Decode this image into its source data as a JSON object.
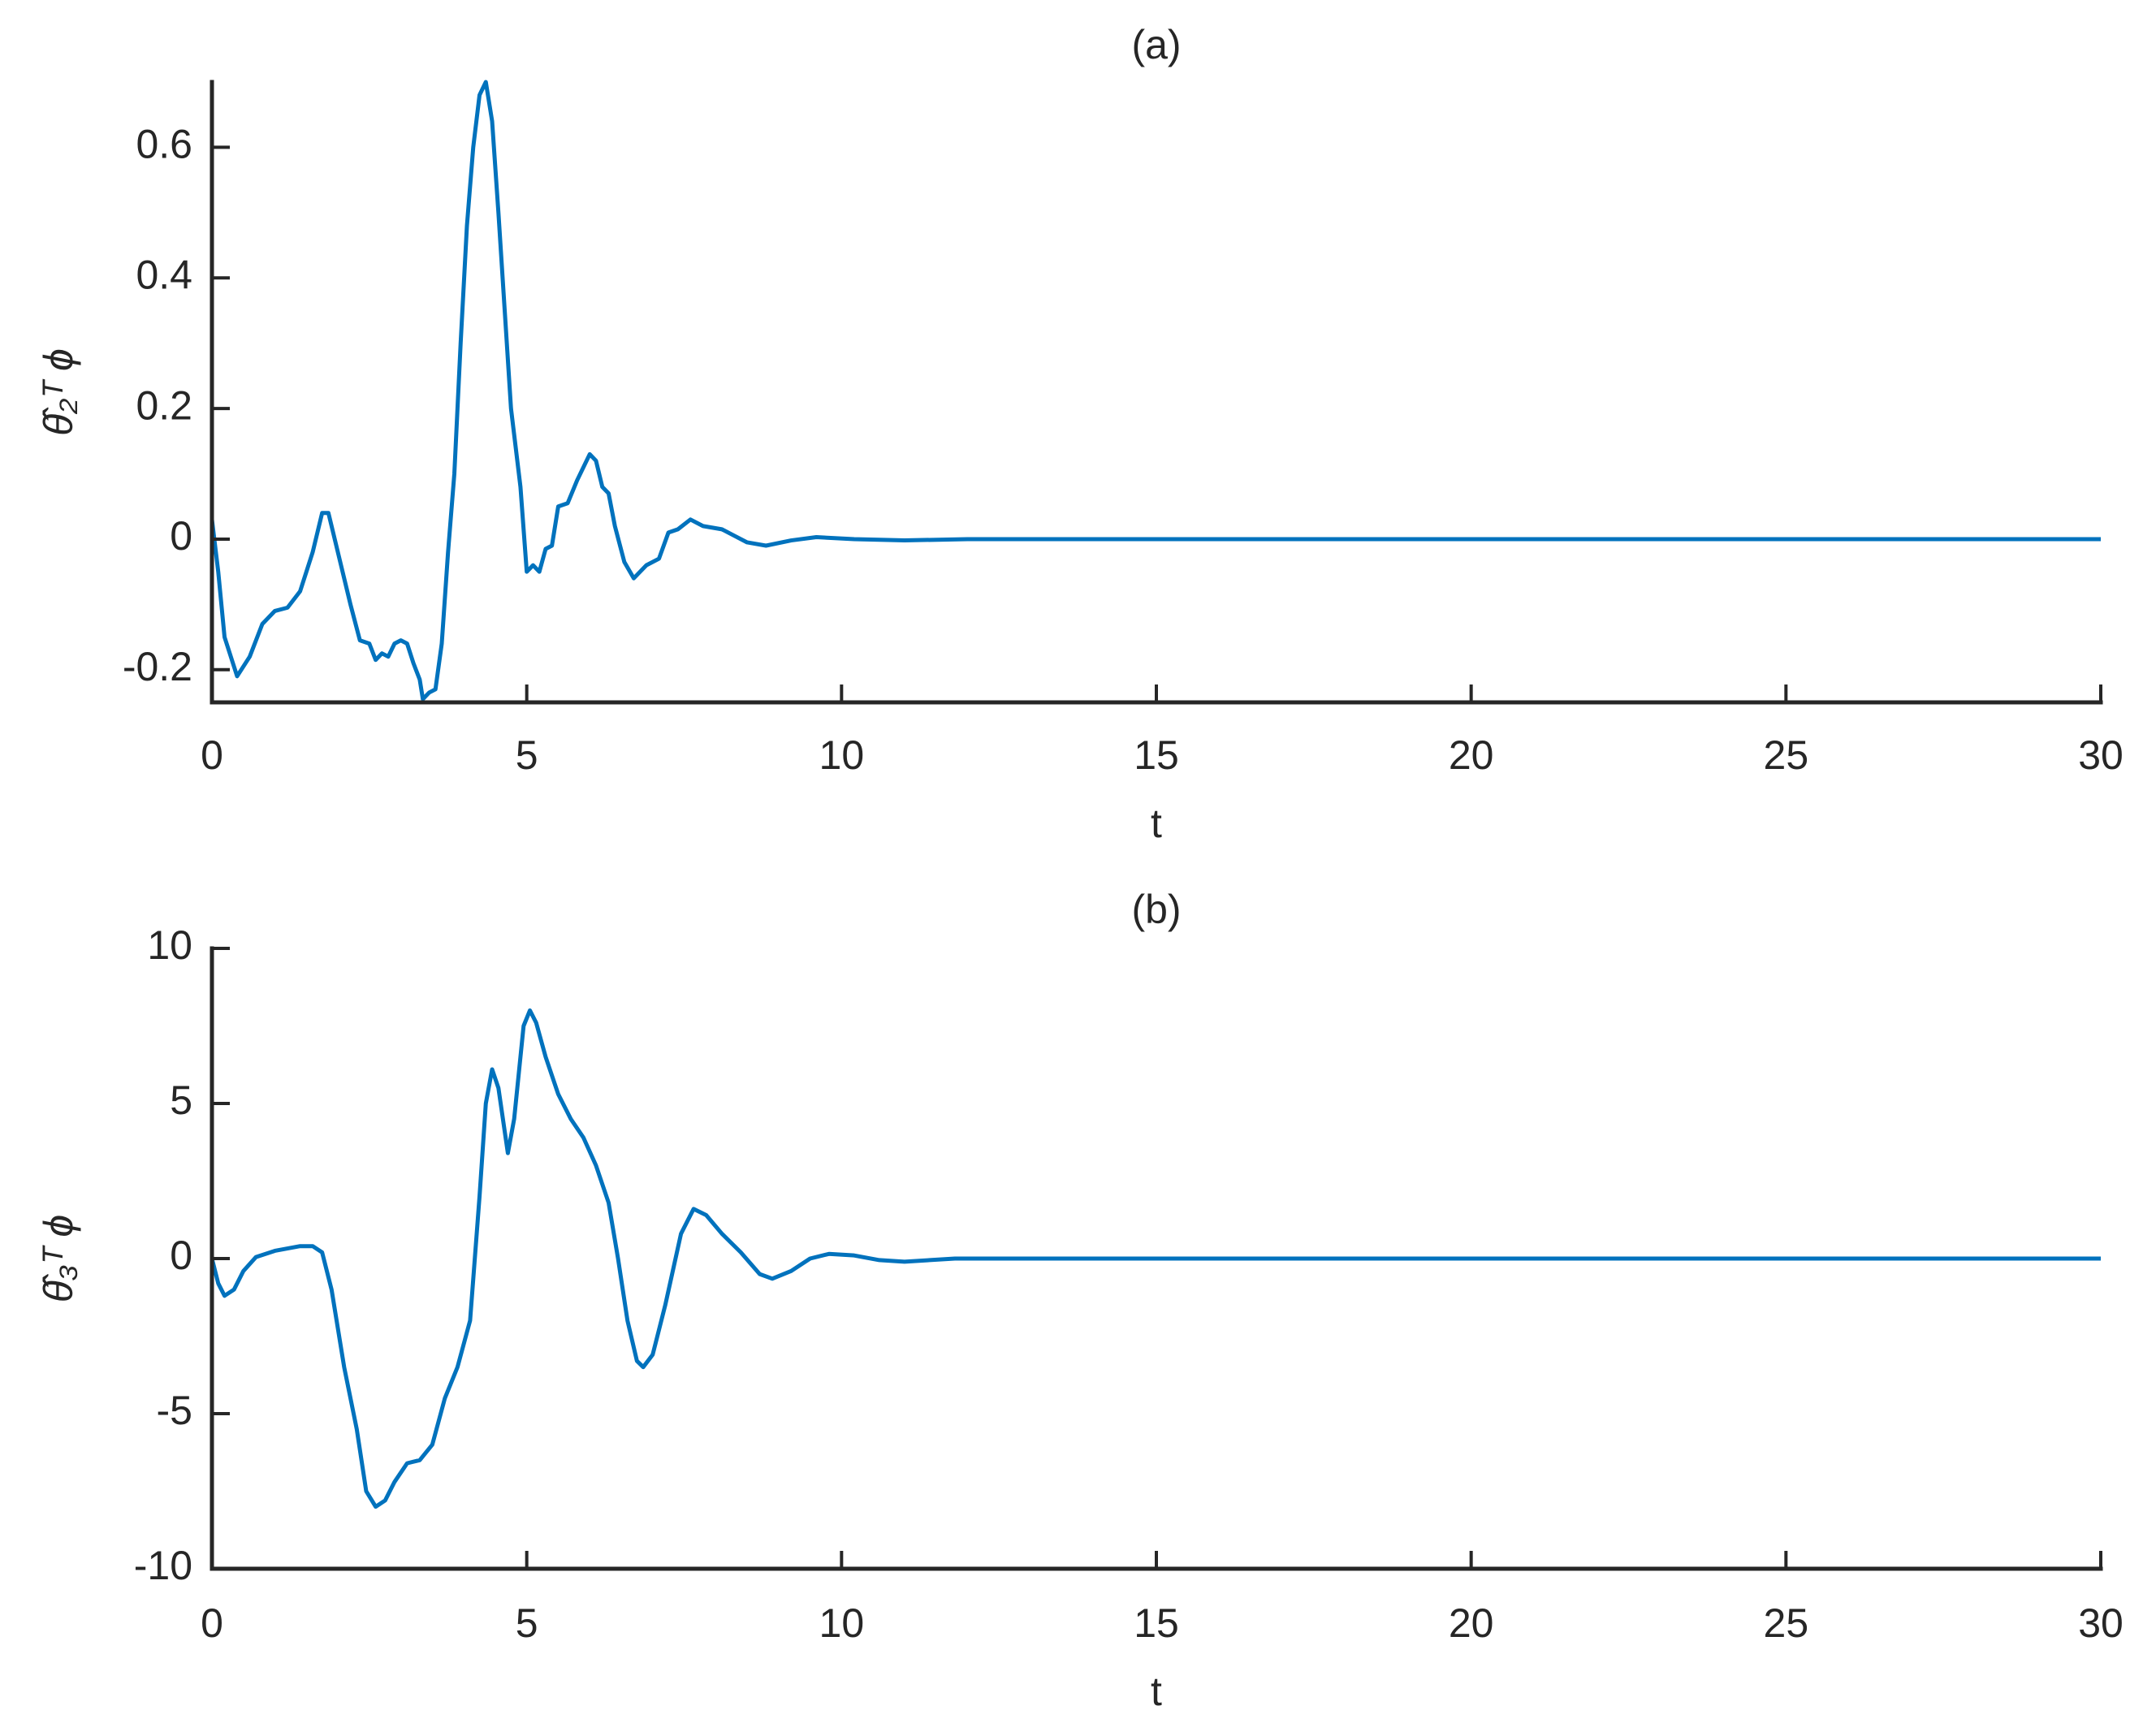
{
  "chart_data": [
    {
      "type": "line",
      "title": "(a)",
      "xlabel": "t",
      "ylabel": "θ̂₂ᵀ ϕ",
      "x": [
        0,
        0.1,
        0.2,
        0.4,
        0.6,
        0.8,
        1.0,
        1.2,
        1.4,
        1.6,
        1.75,
        1.85,
        2.0,
        2.2,
        2.35,
        2.5,
        2.6,
        2.7,
        2.8,
        2.9,
        3.0,
        3.1,
        3.2,
        3.3,
        3.35,
        3.45,
        3.55,
        3.65,
        3.75,
        3.85,
        3.95,
        4.05,
        4.15,
        4.25,
        4.35,
        4.45,
        4.55,
        4.65,
        4.75,
        4.9,
        5.0,
        5.1,
        5.2,
        5.3,
        5.4,
        5.5,
        5.65,
        5.8,
        6.0,
        6.1,
        6.2,
        6.3,
        6.4,
        6.55,
        6.7,
        6.9,
        7.1,
        7.25,
        7.4,
        7.6,
        7.8,
        8.1,
        8.3,
        8.5,
        8.8,
        9.2,
        9.6,
        10.2,
        11,
        12,
        30
      ],
      "values": [
        0.03,
        -0.05,
        -0.15,
        -0.21,
        -0.18,
        -0.13,
        -0.11,
        -0.105,
        -0.08,
        -0.02,
        0.04,
        0.04,
        -0.02,
        -0.1,
        -0.155,
        -0.16,
        -0.185,
        -0.175,
        -0.18,
        -0.16,
        -0.155,
        -0.16,
        -0.19,
        -0.215,
        -0.245,
        -0.235,
        -0.23,
        -0.16,
        -0.02,
        0.1,
        0.3,
        0.48,
        0.6,
        0.68,
        0.7,
        0.64,
        0.5,
        0.35,
        0.2,
        0.08,
        -0.05,
        -0.04,
        -0.05,
        -0.015,
        -0.01,
        0.05,
        0.055,
        0.09,
        0.13,
        0.12,
        0.08,
        0.07,
        0.02,
        -0.035,
        -0.06,
        -0.04,
        -0.03,
        0.01,
        0.015,
        0.03,
        0.02,
        0.015,
        0.005,
        -0.005,
        -0.01,
        -0.002,
        0.003,
        0,
        -0.002,
        0,
        0
      ],
      "color": "#0072bd",
      "xlim": [
        0,
        30
      ],
      "xticks": [
        0,
        5,
        10,
        15,
        20,
        25,
        30
      ],
      "ylim": [
        -0.25,
        0.7
      ],
      "yticks": [
        -0.2,
        0,
        0.2,
        0.4,
        0.6
      ]
    },
    {
      "type": "line",
      "title": "(b)",
      "xlabel": "t",
      "ylabel": "θ̂₃ᵀ ϕ",
      "x": [
        0,
        0.1,
        0.2,
        0.35,
        0.5,
        0.7,
        1.0,
        1.4,
        1.6,
        1.75,
        1.9,
        2.1,
        2.3,
        2.45,
        2.6,
        2.75,
        2.9,
        3.1,
        3.3,
        3.5,
        3.7,
        3.9,
        4.1,
        4.25,
        4.35,
        4.45,
        4.55,
        4.7,
        4.8,
        4.95,
        5.05,
        5.15,
        5.3,
        5.5,
        5.7,
        5.9,
        6.1,
        6.3,
        6.45,
        6.6,
        6.75,
        6.85,
        7.0,
        7.2,
        7.45,
        7.65,
        7.85,
        8.1,
        8.4,
        8.7,
        8.9,
        9.2,
        9.5,
        9.8,
        10.2,
        10.6,
        11,
        11.8,
        12.5,
        30
      ],
      "values": [
        0,
        -0.8,
        -1.2,
        -1.0,
        -0.4,
        0.05,
        0.25,
        0.4,
        0.4,
        0.2,
        -1.0,
        -3.5,
        -5.5,
        -7.5,
        -8.0,
        -7.8,
        -7.2,
        -6.6,
        -6.5,
        -6.0,
        -4.5,
        -3.5,
        -2.0,
        2.0,
        5.0,
        6.1,
        5.5,
        3.4,
        4.5,
        7.5,
        8.0,
        7.6,
        6.5,
        5.3,
        4.5,
        3.9,
        3.0,
        1.8,
        0,
        -2.0,
        -3.3,
        -3.5,
        -3.1,
        -1.5,
        0.8,
        1.6,
        1.4,
        0.8,
        0.2,
        -0.5,
        -0.65,
        -0.4,
        0,
        0.15,
        0.1,
        -0.05,
        -0.1,
        0,
        0,
        0
      ],
      "color": "#0072bd",
      "xlim": [
        0,
        30
      ],
      "xticks": [
        0,
        5,
        10,
        15,
        20,
        25,
        30
      ],
      "ylim": [
        -10,
        10
      ],
      "yticks": [
        -10,
        -5,
        0,
        5,
        10
      ]
    }
  ]
}
